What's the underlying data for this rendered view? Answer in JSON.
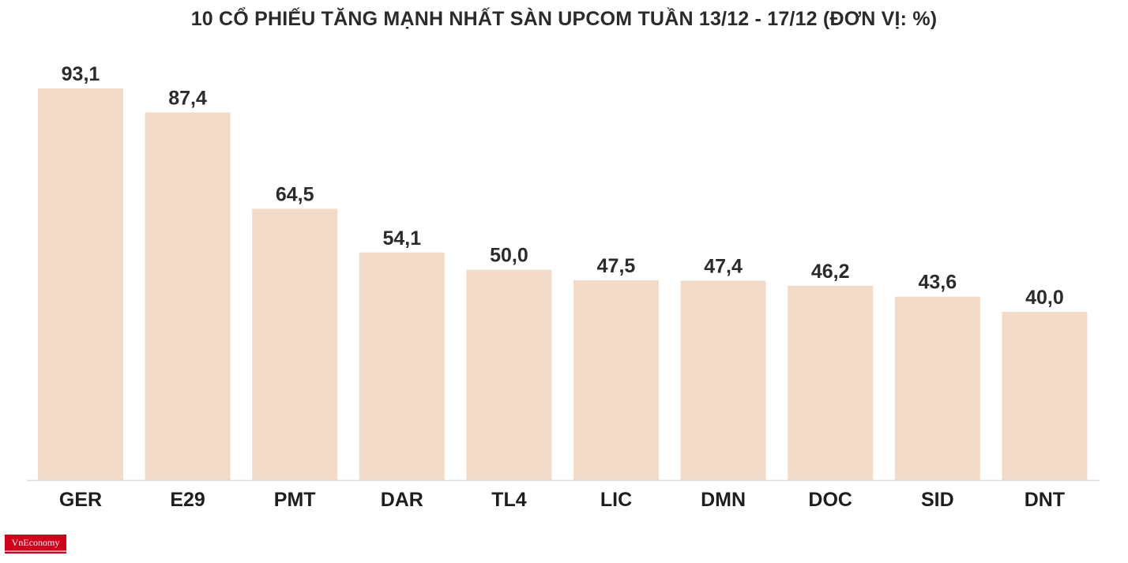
{
  "chart_data": {
    "type": "bar",
    "title": "10 CỔ PHIẾU TĂNG MẠNH NHẤT SÀN UPCOM TUẦN 13/12 - 17/12 (ĐƠN VỊ: %)",
    "categories": [
      "GER",
      "E29",
      "PMT",
      "DAR",
      "TL4",
      "LIC",
      "DMN",
      "DOC",
      "SID",
      "DNT"
    ],
    "values": [
      93.1,
      87.4,
      64.5,
      54.1,
      50.0,
      47.5,
      47.4,
      46.2,
      43.6,
      40.0
    ],
    "value_labels": [
      "93,1",
      "87,4",
      "64,5",
      "54,1",
      "50,0",
      "47,5",
      "47,4",
      "46,2",
      "43,6",
      "40,0"
    ],
    "ylim": [
      0,
      93.1
    ],
    "grid": false,
    "legend": "none",
    "bar_color": "#f2dcc9",
    "baseline_color": "#dddddd"
  },
  "logo": {
    "text": "VnEconomy",
    "color": "#d0021b"
  }
}
